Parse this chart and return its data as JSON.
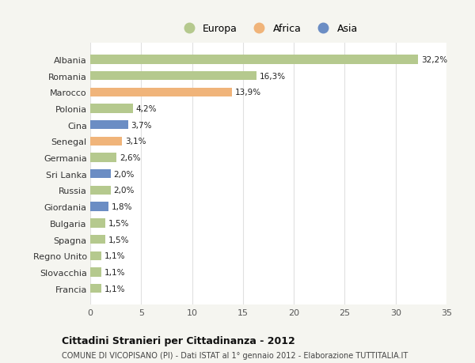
{
  "countries": [
    "Albania",
    "Romania",
    "Marocco",
    "Polonia",
    "Cina",
    "Senegal",
    "Germania",
    "Sri Lanka",
    "Russia",
    "Giordania",
    "Bulgaria",
    "Spagna",
    "Regno Unito",
    "Slovacchia",
    "Francia"
  ],
  "values": [
    32.2,
    16.3,
    13.9,
    4.2,
    3.7,
    3.1,
    2.6,
    2.0,
    2.0,
    1.8,
    1.5,
    1.5,
    1.1,
    1.1,
    1.1
  ],
  "labels": [
    "32,2%",
    "16,3%",
    "13,9%",
    "4,2%",
    "3,7%",
    "3,1%",
    "2,6%",
    "2,0%",
    "2,0%",
    "1,8%",
    "1,5%",
    "1,5%",
    "1,1%",
    "1,1%",
    "1,1%"
  ],
  "continents": [
    "Europa",
    "Europa",
    "Africa",
    "Europa",
    "Asia",
    "Africa",
    "Europa",
    "Asia",
    "Europa",
    "Asia",
    "Europa",
    "Europa",
    "Europa",
    "Europa",
    "Europa"
  ],
  "colors": {
    "Europa": "#b5c98e",
    "Africa": "#f0b47a",
    "Asia": "#6b8dc4"
  },
  "fig_background": "#f5f5f0",
  "plot_background": "#ffffff",
  "xlim": [
    0,
    35
  ],
  "xticks": [
    0,
    5,
    10,
    15,
    20,
    25,
    30,
    35
  ],
  "title": "Cittadini Stranieri per Cittadinanza - 2012",
  "subtitle": "COMUNE DI VICOPISANO (PI) - Dati ISTAT al 1° gennaio 2012 - Elaborazione TUTTITALIA.IT",
  "grid_color": "#e0e0e0",
  "bar_height": 0.55,
  "legend_labels": [
    "Europa",
    "Africa",
    "Asia"
  ]
}
